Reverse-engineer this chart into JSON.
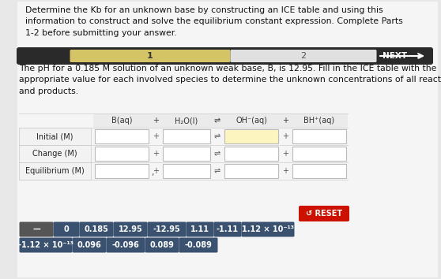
{
  "title_text": "Determine the Kb for an unknown base by constructing an ICE table and using this\ninformation to construct and solve the equilibrium constant expression. Complete Parts\n1-2 before submitting your answer.",
  "description_text": "The pH for a 0.185 M solution of an unknown weak base, B, is 12.95. Fill in the ICE table with the\nappropriate value for each involved species to determine the unknown concentrations of all reactants\nand products.",
  "progress_bar": {
    "label1": "1",
    "label2": "2",
    "next_text": "NEXT",
    "active_color": "#d4c465",
    "inactive_color": "#e0e0e0",
    "bar_bg": "#2a2a2a"
  },
  "table": {
    "row_labels": [
      "Initial (M)",
      "Change (M)",
      "Equilibrium (M)"
    ],
    "col_headers": [
      "B(aq)",
      "+",
      "H₂O(l)",
      "⇌",
      "OH⁻(aq)",
      "+",
      "BH⁺(aq)"
    ],
    "header_bg": "#eeeeee",
    "cell_bg": "#ffffff",
    "cell_border": "#bbbbbb",
    "row_label_bg": "#f2f2f2",
    "highlighted_cell_bg": "#fdf5c0"
  },
  "answer_buttons": {
    "row1": [
      "—",
      "0",
      "0.185",
      "12.95",
      "-12.95",
      "1.11",
      "-1.11",
      "1.12 × 10⁻¹³"
    ],
    "row2": [
      "-1.12 × 10⁻¹³",
      "0.096",
      "-0.096",
      "0.089",
      "-0.089"
    ],
    "btn_color": "#3a5270",
    "btn_color_dark": "#2c3e55",
    "btn_text_color": "#ffffff"
  },
  "reset_button": {
    "text": "↺ RESET",
    "color": "#cc1100",
    "text_color": "#ffffff"
  },
  "bg_color": "#e8e8e8",
  "title_fontsize": 7.8,
  "desc_fontsize": 7.8
}
